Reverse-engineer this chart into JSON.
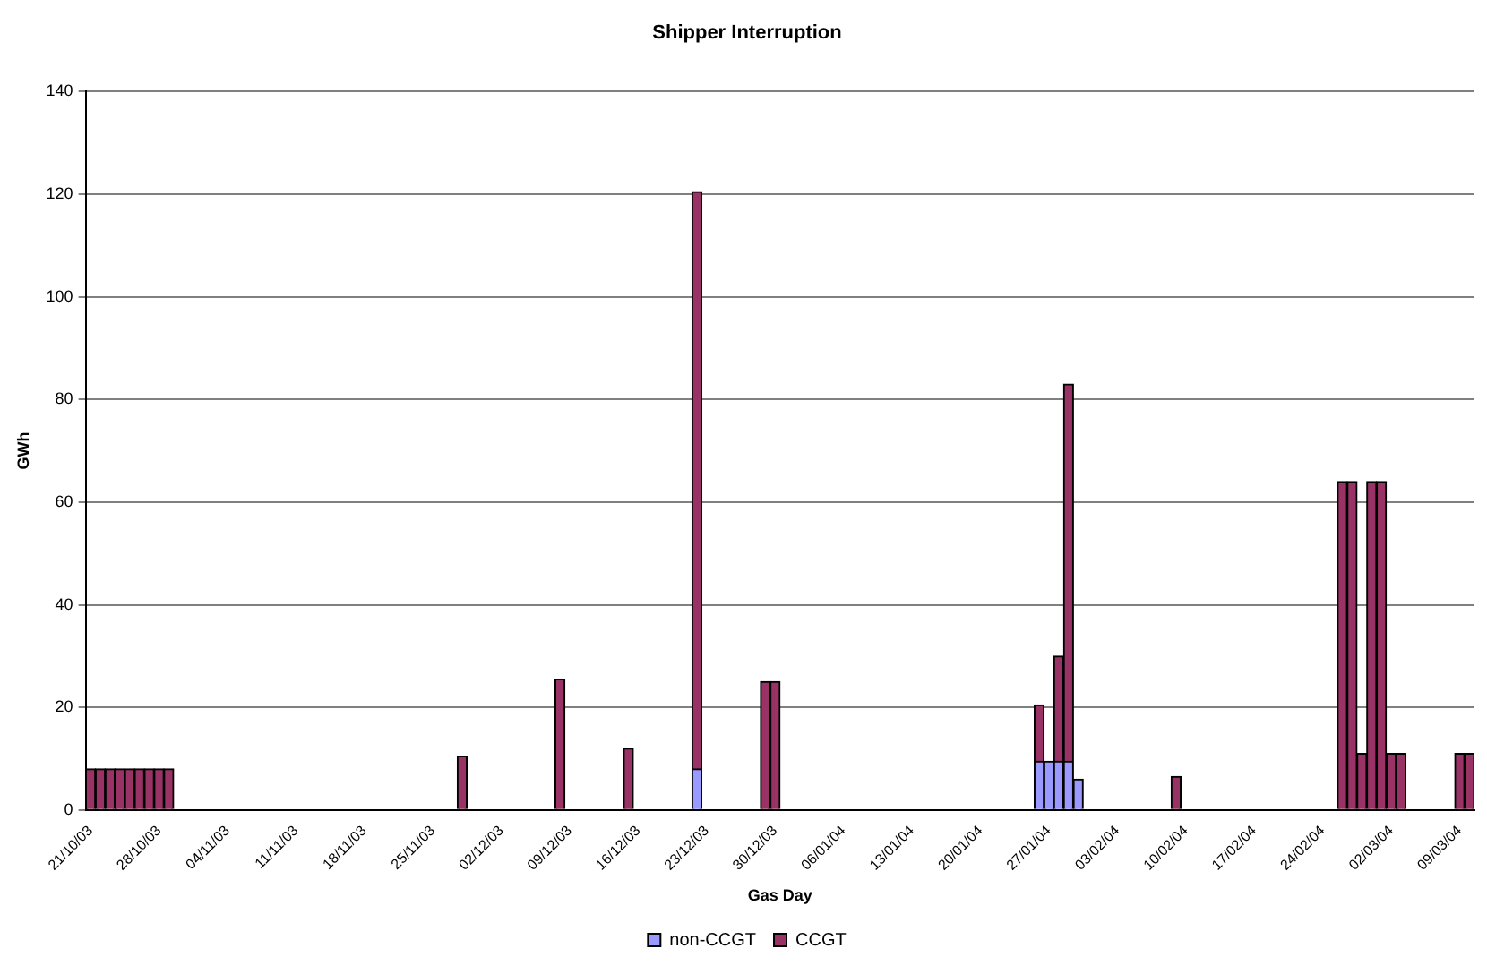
{
  "chart_data": {
    "type": "bar",
    "title": "Shipper Interruption",
    "xlabel": "Gas Day",
    "ylabel": "GWh",
    "stacked": true,
    "categories": [
      "21/10/03",
      null,
      null,
      null,
      null,
      null,
      null,
      "28/10/03",
      null,
      null,
      null,
      null,
      null,
      null,
      "04/11/03",
      null,
      null,
      null,
      null,
      null,
      null,
      "11/11/03",
      null,
      null,
      null,
      null,
      null,
      null,
      "18/11/03",
      null,
      null,
      null,
      null,
      null,
      null,
      "25/11/03",
      null,
      null,
      null,
      null,
      null,
      null,
      "02/12/03",
      null,
      null,
      null,
      null,
      null,
      null,
      "09/12/03",
      null,
      null,
      null,
      null,
      null,
      null,
      "16/12/03",
      null,
      null,
      null,
      null,
      null,
      null,
      "23/12/03",
      null,
      null,
      null,
      null,
      null,
      null,
      "30/12/03",
      null,
      null,
      null,
      null,
      null,
      null,
      "06/01/04",
      null,
      null,
      null,
      null,
      null,
      null,
      "13/01/04",
      null,
      null,
      null,
      null,
      null,
      null,
      "20/01/04",
      null,
      null,
      null,
      null,
      null,
      null,
      "27/01/04",
      null,
      null,
      null,
      null,
      null,
      null,
      "03/02/04",
      null,
      null,
      null,
      null,
      null,
      null,
      "10/02/04",
      null,
      null,
      null,
      null,
      null,
      null,
      "17/02/04",
      null,
      null,
      null,
      null,
      null,
      null,
      "24/02/04",
      null,
      null,
      null,
      null,
      null,
      null,
      "02/03/04",
      null,
      null,
      null,
      null,
      null,
      null,
      "09/03/04",
      null
    ],
    "series": [
      {
        "name": "non-CCGT",
        "color": "#9999ff",
        "values": [
          null,
          null,
          null,
          null,
          null,
          null,
          null,
          null,
          null,
          null,
          null,
          null,
          null,
          null,
          null,
          null,
          null,
          null,
          null,
          null,
          null,
          null,
          null,
          null,
          null,
          null,
          null,
          null,
          null,
          null,
          null,
          null,
          null,
          null,
          null,
          null,
          null,
          null,
          null,
          null,
          null,
          null,
          null,
          null,
          null,
          null,
          null,
          null,
          null,
          null,
          null,
          null,
          null,
          null,
          null,
          null,
          null,
          null,
          null,
          null,
          null,
          null,
          8,
          null,
          null,
          null,
          null,
          null,
          null,
          null,
          null,
          null,
          null,
          null,
          null,
          null,
          null,
          null,
          null,
          null,
          null,
          null,
          null,
          null,
          null,
          null,
          null,
          null,
          null,
          null,
          null,
          null,
          null,
          null,
          null,
          null,
          null,
          9.5,
          9.5,
          9.5,
          9.5,
          6,
          null,
          null,
          null,
          null,
          null,
          null,
          null,
          null,
          null,
          null,
          null,
          null,
          null,
          null,
          null,
          null,
          null,
          null,
          null,
          null,
          null,
          null,
          null,
          null,
          null,
          null,
          null,
          null,
          null,
          null,
          null,
          null,
          null,
          null,
          null,
          null,
          null,
          null,
          null,
          null
        ]
      },
      {
        "name": "CCGT",
        "color": "#993366",
        "values": [
          8,
          8,
          8,
          8,
          8,
          8,
          8,
          8,
          8,
          null,
          null,
          null,
          null,
          null,
          null,
          null,
          null,
          null,
          null,
          null,
          null,
          null,
          null,
          null,
          null,
          null,
          null,
          null,
          null,
          null,
          null,
          null,
          null,
          null,
          null,
          null,
          null,
          null,
          10.5,
          null,
          null,
          null,
          null,
          null,
          null,
          null,
          null,
          null,
          25.5,
          null,
          null,
          null,
          null,
          null,
          null,
          12,
          null,
          null,
          null,
          null,
          null,
          null,
          112.5,
          null,
          null,
          null,
          null,
          null,
          null,
          25,
          25,
          null,
          null,
          null,
          null,
          null,
          null,
          null,
          null,
          null,
          null,
          null,
          null,
          null,
          null,
          null,
          null,
          null,
          null,
          null,
          null,
          null,
          null,
          null,
          null,
          null,
          null,
          11,
          null,
          20.5,
          73.5,
          null,
          null,
          null,
          null,
          null,
          null,
          null,
          null,
          null,
          null,
          6.5,
          null,
          null,
          null,
          null,
          null,
          null,
          null,
          null,
          null,
          null,
          null,
          null,
          null,
          null,
          null,
          null,
          64,
          64,
          11,
          64,
          64,
          11,
          11,
          null,
          null,
          null,
          null,
          null,
          11,
          11
        ]
      }
    ],
    "ylim": [
      0,
      140
    ],
    "yticks": [
      0,
      20,
      40,
      60,
      80,
      100,
      120,
      140
    ],
    "grid": "y",
    "legend": "bottom"
  }
}
